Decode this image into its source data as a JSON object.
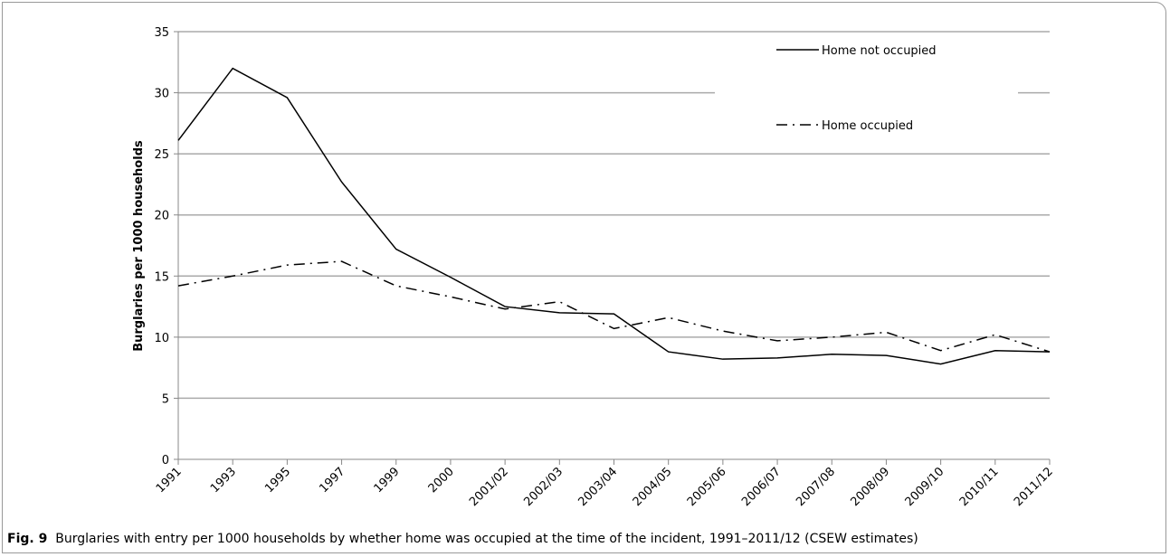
{
  "chart_data": {
    "type": "line",
    "y_label": "Burglaries per 1000 households",
    "categories": [
      "1991",
      "1993",
      "1995",
      "1997",
      "1999",
      "2000",
      "2001/02",
      "2002/03",
      "2003/04",
      "2004/05",
      "2005/06",
      "2006/07",
      "2007/08",
      "2008/09",
      "2009/10",
      "2010/11",
      "2011/12"
    ],
    "series": [
      {
        "name": "Home not occupied",
        "color": "#000000",
        "dash": "solid",
        "values": [
          26.1,
          32.0,
          29.6,
          22.7,
          17.2,
          14.9,
          12.5,
          12.0,
          11.9,
          8.8,
          8.2,
          8.3,
          8.6,
          8.5,
          7.8,
          8.9,
          8.8
        ]
      },
      {
        "name": "Home occupied",
        "color": "#000000",
        "dash": "dash-dot",
        "values": [
          14.2,
          15.0,
          15.9,
          16.2,
          14.2,
          13.3,
          12.3,
          12.9,
          10.7,
          11.6,
          10.5,
          9.7,
          10.0,
          10.4,
          8.9,
          10.2,
          8.8
        ]
      }
    ],
    "ylim": [
      0,
      35
    ],
    "yticks": [
      0,
      5,
      10,
      15,
      20,
      25,
      30,
      35
    ],
    "grid": true,
    "legend": "upper-right",
    "caption_label": "Fig. 9",
    "caption": "Burglaries with entry per 1000 households by whether home was occupied at the time of the incident, 1991–2011/12 (CSEW estimates)"
  }
}
